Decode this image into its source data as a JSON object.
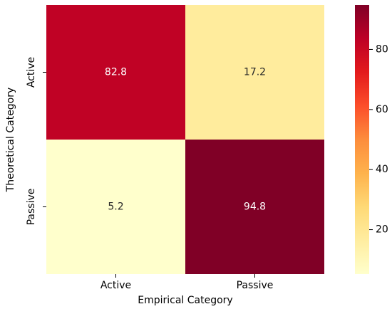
{
  "chart_data": {
    "type": "heatmap",
    "x_categories": [
      "Active",
      "Passive"
    ],
    "y_categories": [
      "Active",
      "Passive"
    ],
    "values": [
      [
        82.8,
        17.2
      ],
      [
        5.2,
        94.8
      ]
    ],
    "xlabel": "Empirical Category",
    "ylabel": "Theoretical Category",
    "colormap": "YlOrRd",
    "clim": [
      5.2,
      94.8
    ],
    "cticks": [
      20,
      40,
      60,
      80
    ]
  }
}
